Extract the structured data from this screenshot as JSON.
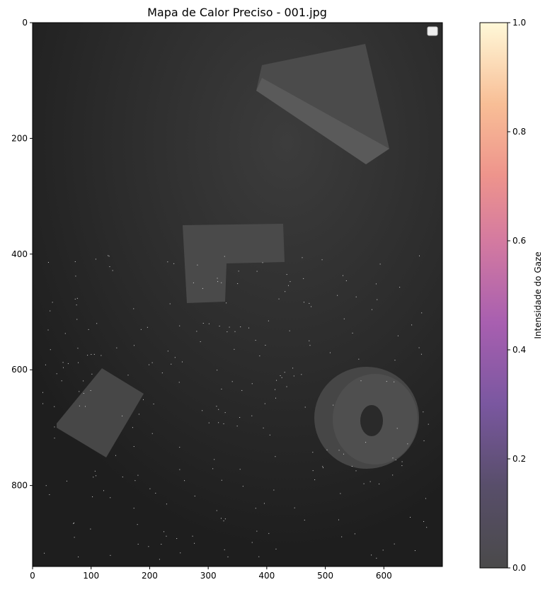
{
  "chart_data": {
    "type": "heatmap",
    "title": "Mapa de Calor Preciso - 001.jpg",
    "xlim": [
      0,
      700
    ],
    "ylim": [
      940,
      0
    ],
    "x_ticks": [
      0,
      100,
      200,
      300,
      400,
      500,
      600
    ],
    "y_ticks": [
      0,
      200,
      400,
      600,
      800
    ],
    "colorbar": {
      "label": "Intensidade do Gaze",
      "range": [
        0.0,
        1.0
      ],
      "ticks": [
        "0.0",
        "0.2",
        "0.4",
        "0.6",
        "0.8",
        "1.0"
      ],
      "colormap": "magma",
      "colors": [
        "#2b2b2b",
        "#5a3c8c",
        "#a05ab4",
        "#e07890",
        "#f5a080",
        "#fde3a8",
        "#fffad6"
      ]
    },
    "legend": {
      "placement": "top-right",
      "entries": []
    },
    "background": "photo of grey foam shapes (triangle, L-shape, cube, ring) on dark table",
    "grid": false
  }
}
